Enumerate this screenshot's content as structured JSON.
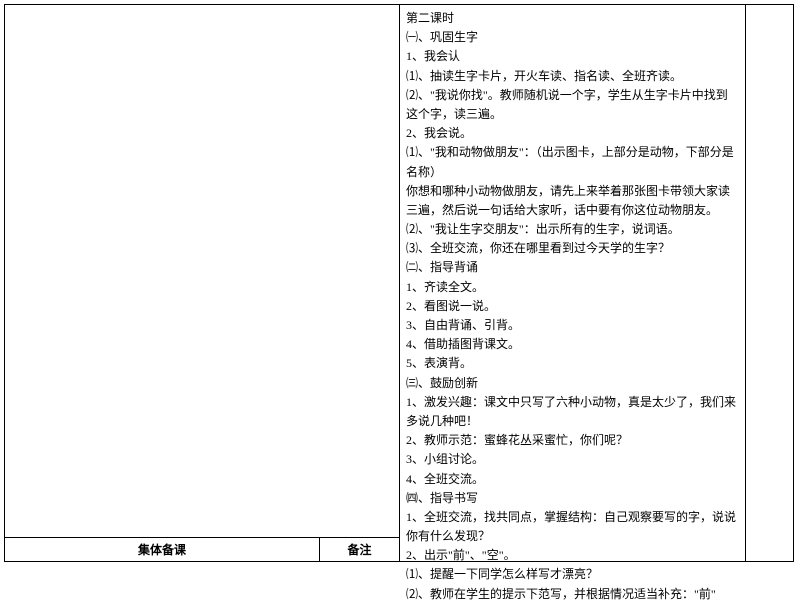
{
  "leftHeaders": {
    "col1": "集体备课",
    "col2": "备注"
  },
  "content": {
    "lines": [
      "第二课时",
      "㈠、巩固生字",
      "1、我会认",
      "⑴、抽读生字卡片，开火车读、指名读、全班齐读。",
      "⑵、\"我说你找\"。教师随机说一个字，学生从生字卡片中找到这个字，读三遍。",
      "2、我会说。",
      "⑴、\"我和动物做朋友\"：（出示图卡，上部分是动物，下部分是名称）",
      "你想和哪种小动物做朋友，请先上来举着那张图卡带领大家读三遍，然后说一句话给大家听，话中要有你这位动物朋友。",
      "⑵、\"我让生字交朋友\"：出示所有的生字，说词语。",
      "⑶、全班交流，你还在哪里看到过今天学的生字？",
      "㈡、指导背诵",
      "1、齐读全文。",
      "2、看图说一说。",
      "3、自由背诵、引背。",
      "4、借助插图背课文。",
      "5、表演背。",
      "㈢、鼓励创新",
      "1、激发兴趣：课文中只写了六种小动物，真是太少了，我们来多说几种吧！",
      "2、教师示范：蜜蜂花丛采蜜忙，你们呢？",
      "3、小组讨论。",
      "4、全班交流。",
      "㈣、指导书写",
      "1、全班交流，找共同点，掌握结构：自己观察要写的字，说说你有什么发现？",
      "2、出示\"前\"、\"空\"。",
      "⑴、提醒一下同学怎么样写才漂亮？",
      "⑵、教师在学生的提示下范写，并根据情况适当补充：\"前\""
    ]
  }
}
